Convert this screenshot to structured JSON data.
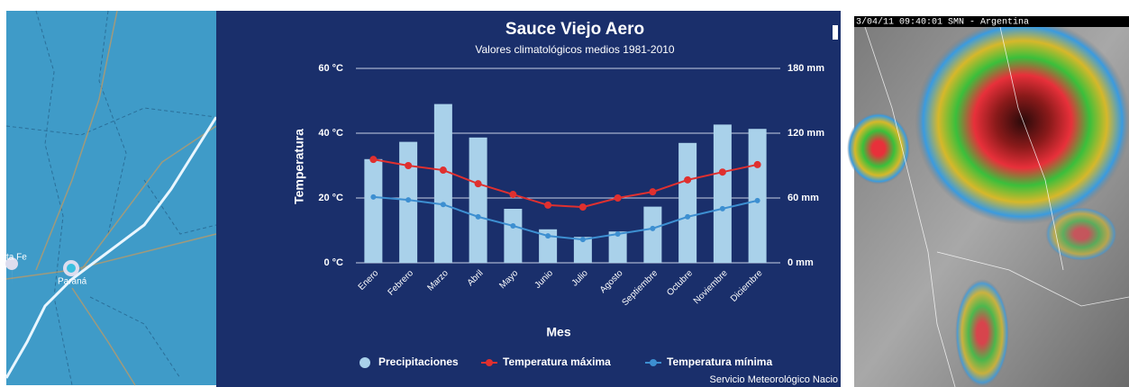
{
  "map": {
    "labels": [
      "ta Fe",
      "Paraná"
    ]
  },
  "satellite": {
    "header": "3/04/11 09:40:01 SMN - Argentina"
  },
  "chart_data": {
    "type": "combo",
    "title": "Sauce Viejo Aero",
    "subtitle": "Valores climatológicos medios 1981-2010",
    "x_label": "Mes",
    "y_label": "Temperatura",
    "source": "Servicio Meteorológico Nacio",
    "categories": [
      "Enero",
      "Febrero",
      "Marzo",
      "Abril",
      "Mayo",
      "Junio",
      "Julio",
      "Agosto",
      "Septiembre",
      "Octubre",
      "Noviembre",
      "Diciembre"
    ],
    "ylim": [
      0,
      60
    ],
    "yticks": [
      {
        "value": 0,
        "label": "0 °C"
      },
      {
        "value": 20,
        "label": "20 °C"
      },
      {
        "value": 40,
        "label": "40 °C"
      },
      {
        "value": 60,
        "label": "60 °C"
      }
    ],
    "y2lim": [
      0,
      180
    ],
    "y2ticks": [
      {
        "value": 0,
        "label": "0 mm"
      },
      {
        "value": 60,
        "label": "60 mm"
      },
      {
        "value": 120,
        "label": "120 mm"
      },
      {
        "value": 180,
        "label": "180 mm"
      }
    ],
    "grid": true,
    "legend": "bottom",
    "series": [
      {
        "name": "Precipitaciones",
        "type": "bar",
        "axis": "y2",
        "color": "#a9d1ea",
        "values": [
          96,
          112,
          147,
          116,
          50,
          31,
          24,
          29,
          52,
          111,
          128,
          124
        ]
      },
      {
        "name": "Temperatura máxima",
        "type": "line",
        "color": "#e0302f",
        "values": [
          31.9,
          30,
          28.6,
          24.4,
          21.1,
          17.8,
          17.2,
          20,
          21.9,
          25.6,
          28,
          30.3
        ]
      },
      {
        "name": "Temperatura mínima",
        "type": "line",
        "color": "#3d8fd1",
        "values": [
          20.3,
          19.4,
          18,
          14.2,
          11.4,
          8.3,
          7.2,
          8.9,
          10.6,
          14.2,
          16.7,
          19.2
        ]
      }
    ]
  }
}
